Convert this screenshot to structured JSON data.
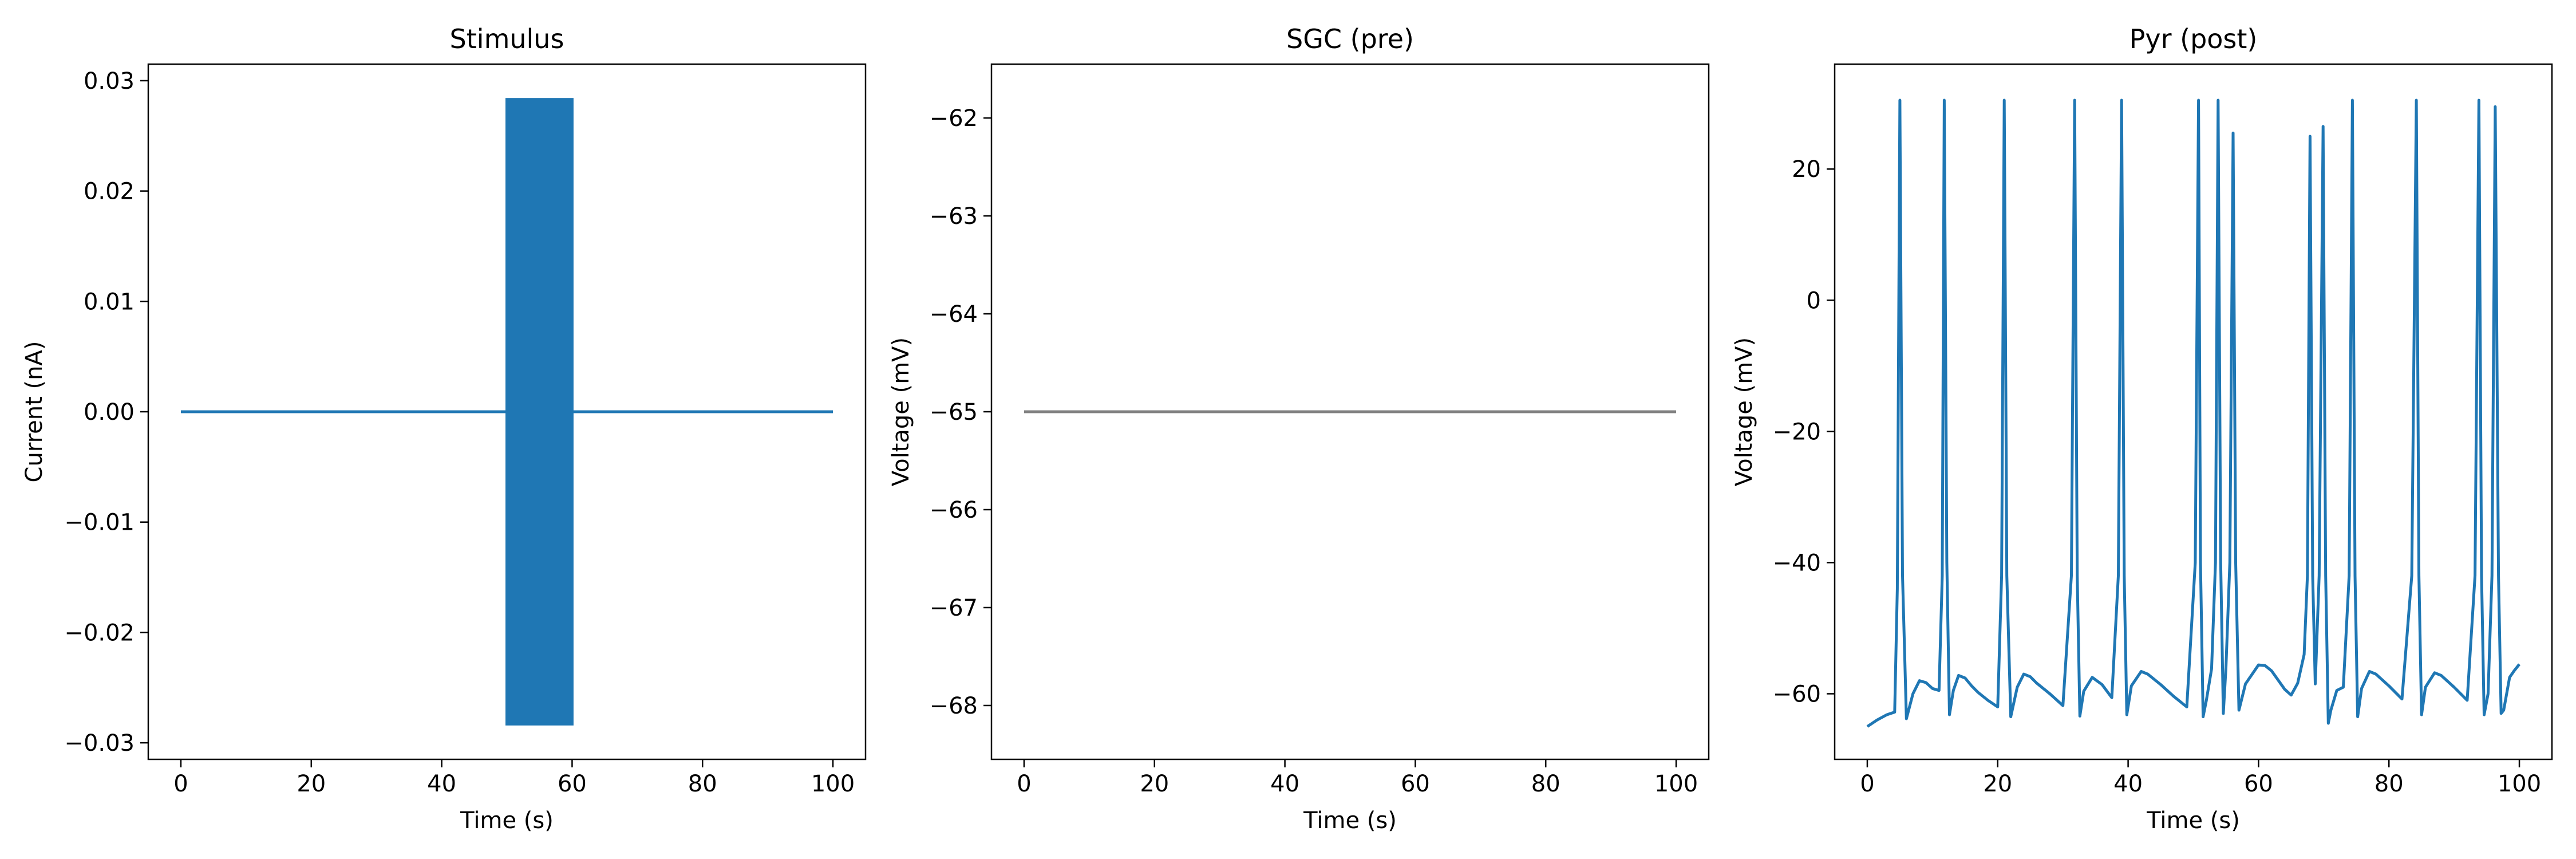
{
  "chart_data": [
    {
      "type": "line",
      "title": "Stimulus",
      "xlabel": "Time (s)",
      "ylabel": "Current (nA)",
      "xlim": [
        -5,
        105
      ],
      "ylim": [
        -0.0315,
        0.0315
      ],
      "xticks": [
        0,
        20,
        40,
        60,
        80,
        100
      ],
      "yticks": [
        -0.03,
        -0.02,
        -0.01,
        0.0,
        0.01,
        0.02,
        0.03
      ],
      "ytick_labels": [
        "−0.03",
        "−0.02",
        "−0.01",
        "0.00",
        "0.01",
        "0.02",
        "0.03"
      ],
      "grid": false,
      "series": [
        {
          "color": "#1f77b4",
          "segments": [
            {
              "kind": "line",
              "x": [
                0,
                50
              ],
              "y": [
                0,
                0
              ]
            },
            {
              "kind": "oscillation_band",
              "x_start": 50,
              "x_end": 60,
              "amplitude": 0.0283
            },
            {
              "kind": "line",
              "x": [
                60,
                100
              ],
              "y": [
                0,
                0
              ]
            }
          ]
        }
      ]
    },
    {
      "type": "line",
      "title": "SGC (pre)",
      "xlabel": "Time (s)",
      "ylabel": "Voltage (mV)",
      "xlim": [
        -5,
        105
      ],
      "ylim": [
        -68.55,
        -61.45
      ],
      "xticks": [
        0,
        20,
        40,
        60,
        80,
        100
      ],
      "yticks": [
        -68,
        -67,
        -66,
        -65,
        -64,
        -63,
        -62
      ],
      "ytick_labels": [
        "−68",
        "−67",
        "−66",
        "−65",
        "−64",
        "−63",
        "−62"
      ],
      "grid": false,
      "series": [
        {
          "color": "#808080",
          "x": [
            0,
            100
          ],
          "y": [
            -65,
            -65
          ]
        }
      ]
    },
    {
      "type": "line",
      "title": "Pyr (post)",
      "xlabel": "Time (s)",
      "ylabel": "Voltage (mV)",
      "xlim": [
        -5,
        105
      ],
      "ylim": [
        -70,
        36
      ],
      "xticks": [
        0,
        20,
        40,
        60,
        80,
        100
      ],
      "yticks": [
        -60,
        -40,
        -20,
        0,
        20
      ],
      "ytick_labels": [
        "−60",
        "−40",
        "−20",
        "0",
        "20"
      ],
      "grid": false,
      "series": [
        {
          "color": "#1f77b4",
          "x": [
            0,
            1.5,
            3,
            4.2,
            4.6,
            5.0,
            5.4,
            6.0,
            7.0,
            8.0,
            9.0,
            10.0,
            11.0,
            11.5,
            11.8,
            12.2,
            12.6,
            13.2,
            14.0,
            15.0,
            16.0,
            17.0,
            18.5,
            20.0,
            20.6,
            21.0,
            21.4,
            22.0,
            23.0,
            24.0,
            25.0,
            26.0,
            28.0,
            30.0,
            31.3,
            31.8,
            32.2,
            32.6,
            33.2,
            34.5,
            36.0,
            37.5,
            38.5,
            39.0,
            39.4,
            39.8,
            40.5,
            42.0,
            43.0,
            45.0,
            47.0,
            49.0,
            50.3,
            50.8,
            51.1,
            51.5,
            52.0,
            52.8,
            53.4,
            53.8,
            54.2,
            54.6,
            55.0,
            55.6,
            56.1,
            56.5,
            57.0,
            58.0,
            60.0,
            61.0,
            62.0,
            64.0,
            65.0,
            66.0,
            67.0,
            67.5,
            67.9,
            68.3,
            68.7,
            69.3,
            69.9,
            70.3,
            70.7,
            71.1,
            72.0,
            73.0,
            73.9,
            74.4,
            74.8,
            75.2,
            75.8,
            77.0,
            78.0,
            80.0,
            82.0,
            83.5,
            84.2,
            84.6,
            85.0,
            85.6,
            87.0,
            88.0,
            90.0,
            92.0,
            93.2,
            93.8,
            94.2,
            94.6,
            95.2,
            95.8,
            96.3,
            96.8,
            97.2,
            97.6,
            98.5,
            99.2,
            100.0
          ],
          "y": [
            -65,
            -64,
            -63.2,
            -62.8,
            -44,
            30.5,
            -42,
            -63.8,
            -60,
            -58,
            -58.3,
            -59.2,
            -59.5,
            -42,
            30.5,
            -40,
            -63.2,
            -59.5,
            -57.2,
            -57.6,
            -58.8,
            -59.8,
            -61,
            -62,
            -42,
            30.5,
            -42,
            -63.5,
            -59,
            -57,
            -57.4,
            -58.4,
            -60,
            -61.8,
            -42,
            30.5,
            -42,
            -63.4,
            -59.6,
            -57.5,
            -58.6,
            -60.6,
            -42,
            30.5,
            -42,
            -63.2,
            -58.8,
            -56.6,
            -57,
            -58.6,
            -60.4,
            -62,
            -40,
            30.5,
            -40,
            -63.5,
            -61,
            -56.2,
            -40,
            30.5,
            -40,
            -63,
            -56,
            -40,
            25.5,
            -40,
            -62.5,
            -58.5,
            -55.6,
            -55.7,
            -56.5,
            -59.3,
            -60.2,
            -58.4,
            -54,
            -42,
            25,
            -42,
            -58.5,
            -42,
            26.5,
            -42,
            -64.5,
            -62.5,
            -59.5,
            -59,
            -42,
            30.5,
            -42,
            -63.5,
            -59.2,
            -56.6,
            -57,
            -58.8,
            -60.8,
            -42,
            30.5,
            -42,
            -63.2,
            -59,
            -56.8,
            -57.2,
            -59,
            -61,
            -42,
            30.5,
            -42,
            -63.2,
            -60,
            -42,
            29.5,
            -42,
            -63,
            -62.5,
            -57.5,
            -56.5,
            -55.5
          ]
        }
      ]
    }
  ]
}
